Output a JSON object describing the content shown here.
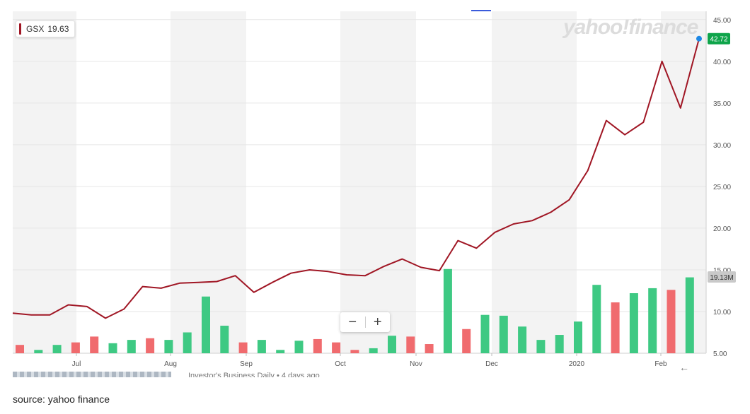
{
  "ticker": {
    "symbol": "GSX",
    "value": "19.63"
  },
  "watermark": "yahoo!finance",
  "last_price_label": "42.72",
  "volume_label": "19.13M",
  "zoom": {
    "minus": "−",
    "plus": "+"
  },
  "news": {
    "text": "Investor's Business Daily • 4 days ago"
  },
  "back_arrow": "←",
  "source_text": "source: yahoo finance",
  "colors": {
    "line": "#a01624",
    "vol_up": "#3ec983",
    "vol_down": "#f06b6e",
    "band": "#f3f3f3",
    "price_badge": "#0ea44a",
    "last_dot": "#1e88e5"
  },
  "chart_data": {
    "type": "line",
    "x_tick_labels": [
      "Jul",
      "Aug",
      "Sep",
      "Oct",
      "Nov",
      "Dec",
      "2020",
      "Feb"
    ],
    "y_tick_labels": [
      "5.00",
      "10.00",
      "15.00",
      "20.00",
      "25.00",
      "30.00",
      "35.00",
      "40.00",
      "45.00"
    ],
    "ylim": [
      5,
      46
    ],
    "grid": true,
    "series": [
      {
        "type": "line",
        "values": [
          9.8,
          9.6,
          9.6,
          10.8,
          10.6,
          9.2,
          10.3,
          13.0,
          12.8,
          13.4,
          13.5,
          13.6,
          14.3,
          12.3,
          13.5,
          14.6,
          15.0,
          14.8,
          14.4,
          14.3,
          15.4,
          16.3,
          15.3,
          14.9,
          18.5,
          17.6,
          19.5,
          20.5,
          20.9,
          21.9,
          23.4,
          26.9,
          32.9,
          31.2,
          32.7,
          40.0,
          34.4,
          42.72
        ]
      },
      {
        "type": "volume",
        "bars": [
          {
            "v": 6.0,
            "dir": "down"
          },
          {
            "v": 5.4,
            "dir": "up"
          },
          {
            "v": 6.0,
            "dir": "up"
          },
          {
            "v": 6.3,
            "dir": "down"
          },
          {
            "v": 7.0,
            "dir": "down"
          },
          {
            "v": 6.2,
            "dir": "up"
          },
          {
            "v": 6.6,
            "dir": "up"
          },
          {
            "v": 6.8,
            "dir": "down"
          },
          {
            "v": 6.6,
            "dir": "up"
          },
          {
            "v": 7.5,
            "dir": "up"
          },
          {
            "v": 11.8,
            "dir": "up"
          },
          {
            "v": 8.3,
            "dir": "up"
          },
          {
            "v": 6.3,
            "dir": "down"
          },
          {
            "v": 6.6,
            "dir": "up"
          },
          {
            "v": 5.4,
            "dir": "up"
          },
          {
            "v": 6.5,
            "dir": "up"
          },
          {
            "v": 6.7,
            "dir": "down"
          },
          {
            "v": 6.3,
            "dir": "down"
          },
          {
            "v": 5.4,
            "dir": "down"
          },
          {
            "v": 5.6,
            "dir": "up"
          },
          {
            "v": 7.1,
            "dir": "up"
          },
          {
            "v": 7.0,
            "dir": "down"
          },
          {
            "v": 6.1,
            "dir": "down"
          },
          {
            "v": 15.1,
            "dir": "up"
          },
          {
            "v": 7.9,
            "dir": "down"
          },
          {
            "v": 9.6,
            "dir": "up"
          },
          {
            "v": 9.5,
            "dir": "up"
          },
          {
            "v": 8.2,
            "dir": "up"
          },
          {
            "v": 6.6,
            "dir": "up"
          },
          {
            "v": 7.2,
            "dir": "up"
          },
          {
            "v": 8.8,
            "dir": "up"
          },
          {
            "v": 13.2,
            "dir": "up"
          },
          {
            "v": 11.1,
            "dir": "down"
          },
          {
            "v": 12.2,
            "dir": "up"
          },
          {
            "v": 12.8,
            "dir": "up"
          },
          {
            "v": 12.6,
            "dir": "down"
          },
          {
            "v": 14.1,
            "dir": "up"
          }
        ]
      }
    ]
  }
}
